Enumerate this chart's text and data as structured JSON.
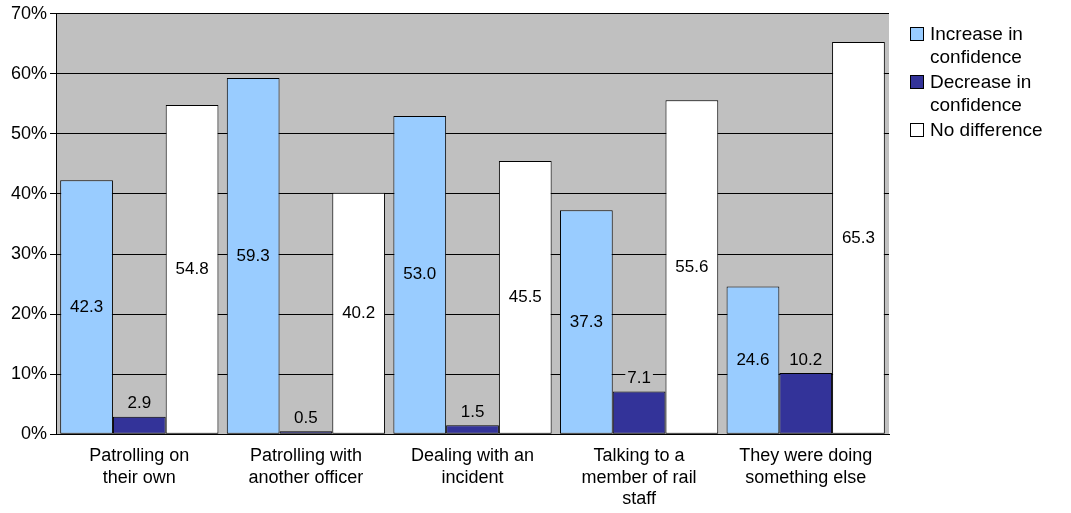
{
  "chart_data": {
    "type": "bar",
    "categories": [
      "Patrolling on their own",
      "Patrolling with another officer",
      "Dealing with an incident",
      "Talking to a member of rail staff",
      "They were doing something else"
    ],
    "series": [
      {
        "name": "Increase in confidence",
        "color": "#99ccff",
        "values": [
          42.3,
          59.3,
          53.0,
          37.3,
          24.6
        ],
        "value_labels": [
          "42.3",
          "59.3",
          "53.0",
          "37.3",
          "24.6"
        ]
      },
      {
        "name": "Decrease in confidence",
        "color": "#333399",
        "values": [
          2.9,
          0.5,
          1.5,
          7.1,
          10.2
        ],
        "value_labels": [
          "2.9",
          "0.5",
          "1.5",
          "7.1",
          "10.2"
        ]
      },
      {
        "name": "No difference",
        "color": "#ffffff",
        "values": [
          54.8,
          40.2,
          45.5,
          55.6,
          65.3
        ],
        "value_labels": [
          "54.8",
          "40.2",
          "45.5",
          "55.6",
          "65.3"
        ]
      }
    ],
    "ylim": [
      0,
      70
    ],
    "yticks": [
      {
        "value": 0,
        "label": "0%"
      },
      {
        "value": 10,
        "label": "10%"
      },
      {
        "value": 20,
        "label": "20%"
      },
      {
        "value": 30,
        "label": "30%"
      },
      {
        "value": 40,
        "label": "40%"
      },
      {
        "value": 50,
        "label": "50%"
      },
      {
        "value": 60,
        "label": "60%"
      },
      {
        "value": 70,
        "label": "70%"
      }
    ],
    "grid": "y",
    "legend": "right"
  }
}
